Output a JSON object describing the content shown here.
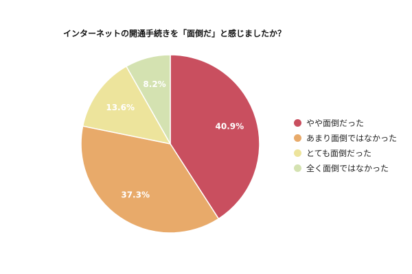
{
  "chart_data": {
    "type": "pie",
    "title": "インターネットの開通手続きを「面倒だ」と感じましたか？",
    "categories": [
      "やや面倒だった",
      "あまり面倒ではなかった",
      "とても面倒だった",
      "全く面倒ではなかった"
    ],
    "values": [
      40.9,
      37.3,
      13.6,
      8.2
    ],
    "data_labels": [
      "40.9%",
      "37.3%",
      "13.6%",
      "8.2%"
    ],
    "colors": [
      "#c94f5f",
      "#e8aa6a",
      "#ede49c",
      "#d4e2b1"
    ],
    "legend_position": "right"
  }
}
